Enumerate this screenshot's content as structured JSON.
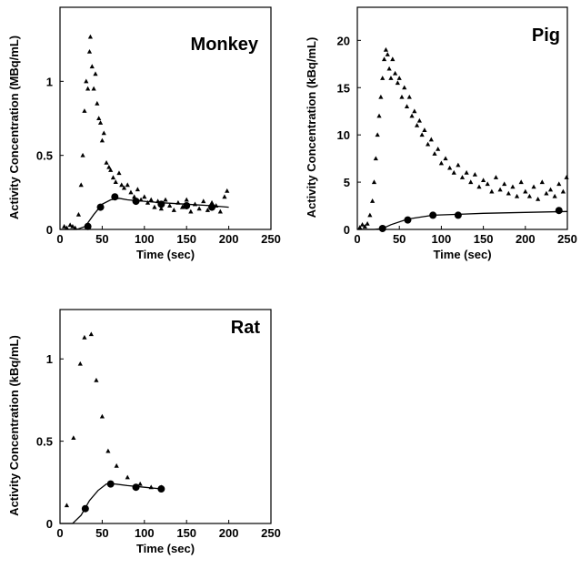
{
  "chart_data": [
    {
      "type": "scatter",
      "title": "Monkey",
      "x_label": "Time (sec)",
      "y_label": "Activity Concentration (MBq/mL)",
      "xlim": [
        0,
        250
      ],
      "xticks": [
        0,
        50,
        100,
        150,
        200,
        250
      ],
      "ylim": [
        0,
        1.5
      ],
      "yticks": [
        0,
        0.5,
        1
      ],
      "color": "#000000",
      "series": [
        {
          "marker": "triangle",
          "x": [
            5,
            8,
            12,
            15,
            18,
            22,
            25,
            27,
            29,
            31,
            33,
            35,
            36,
            38,
            40,
            42,
            44,
            46,
            48,
            50,
            52,
            55,
            58,
            60,
            63,
            66,
            70,
            73,
            76,
            80,
            84,
            88,
            92,
            96,
            100,
            104,
            108,
            112,
            116,
            120,
            125,
            130,
            135,
            140,
            145,
            150,
            155,
            160,
            165,
            170,
            175,
            180,
            185,
            190,
            195,
            198
          ],
          "values": [
            0.02,
            0.01,
            0.03,
            0.02,
            0.01,
            0.1,
            0.3,
            0.5,
            0.8,
            1.0,
            0.95,
            1.2,
            1.3,
            1.1,
            0.95,
            1.05,
            0.85,
            0.75,
            0.72,
            0.6,
            0.65,
            0.45,
            0.42,
            0.4,
            0.35,
            0.32,
            0.38,
            0.3,
            0.28,
            0.3,
            0.25,
            0.22,
            0.27,
            0.2,
            0.22,
            0.18,
            0.2,
            0.15,
            0.19,
            0.14,
            0.2,
            0.16,
            0.13,
            0.18,
            0.15,
            0.2,
            0.12,
            0.17,
            0.14,
            0.19,
            0.13,
            0.18,
            0.16,
            0.12,
            0.22,
            0.26
          ]
        },
        {
          "marker": "circle",
          "x": [
            33,
            48,
            65,
            90,
            120,
            150,
            180
          ],
          "values": [
            0.02,
            0.15,
            0.22,
            0.19,
            0.17,
            0.16,
            0.15
          ]
        },
        {
          "marker": "line",
          "x": [
            0,
            20,
            30,
            40,
            50,
            60,
            70,
            80,
            100,
            120,
            150,
            180,
            200
          ],
          "values": [
            0,
            0,
            0.02,
            0.1,
            0.17,
            0.2,
            0.21,
            0.2,
            0.19,
            0.18,
            0.17,
            0.16,
            0.15
          ]
        }
      ]
    },
    {
      "type": "scatter",
      "title": "Pig",
      "x_label": "Time (sec)",
      "y_label": "Activity Concentration (kBq/mL)",
      "xlim": [
        0,
        250
      ],
      "xticks": [
        0,
        50,
        100,
        150,
        200,
        250
      ],
      "ylim": [
        0,
        23.5
      ],
      "yticks": [
        0,
        5,
        10,
        15,
        20
      ],
      "color": "#000000",
      "series": [
        {
          "marker": "triangle",
          "x": [
            3,
            6,
            9,
            12,
            15,
            18,
            20,
            22,
            24,
            26,
            28,
            30,
            32,
            34,
            36,
            38,
            40,
            42,
            45,
            48,
            50,
            53,
            56,
            59,
            62,
            65,
            68,
            71,
            74,
            77,
            80,
            84,
            88,
            92,
            96,
            100,
            105,
            110,
            115,
            120,
            125,
            130,
            135,
            140,
            145,
            150,
            155,
            160,
            165,
            170,
            175,
            180,
            185,
            190,
            195,
            200,
            205,
            210,
            215,
            220,
            225,
            230,
            235,
            240,
            245,
            249
          ],
          "values": [
            0.2,
            0.5,
            0.3,
            0.6,
            1.5,
            3,
            5,
            7.5,
            10,
            12,
            14,
            16,
            18,
            19,
            18.5,
            17,
            16,
            18,
            16.5,
            15.5,
            16,
            14,
            15,
            13,
            14,
            12,
            12.5,
            11,
            11.5,
            10,
            10.5,
            9,
            9.5,
            8,
            8.5,
            7,
            7.5,
            6.5,
            6,
            6.8,
            5.5,
            6,
            5,
            5.8,
            4.5,
            5.2,
            4.8,
            4,
            5.5,
            4.2,
            4.8,
            3.8,
            4.5,
            3.5,
            5,
            4,
            3.5,
            4.5,
            3.2,
            5,
            3.8,
            4.2,
            3.5,
            4.8,
            4,
            5.5
          ]
        },
        {
          "marker": "circle",
          "x": [
            30,
            60,
            90,
            120,
            240
          ],
          "values": [
            0.1,
            1,
            1.5,
            1.5,
            2
          ]
        },
        {
          "marker": "line",
          "x": [
            0,
            20,
            30,
            40,
            60,
            90,
            120,
            150,
            200,
            250
          ],
          "values": [
            0,
            0,
            0.1,
            0.5,
            1.1,
            1.5,
            1.6,
            1.7,
            1.8,
            1.9
          ]
        }
      ]
    },
    {
      "type": "scatter",
      "title": "Rat",
      "x_label": "Time (sec)",
      "y_label": "Activity Concentration (kBq/mL)",
      "xlim": [
        0,
        250
      ],
      "xticks": [
        0,
        50,
        100,
        150,
        200,
        250
      ],
      "ylim": [
        0,
        1.3
      ],
      "yticks": [
        0,
        0.5,
        1
      ],
      "color": "#000000",
      "series": [
        {
          "marker": "triangle",
          "x": [
            8,
            16,
            24,
            29,
            37,
            43,
            50,
            57,
            67,
            80,
            95,
            108,
            120
          ],
          "values": [
            0.11,
            0.52,
            0.97,
            1.13,
            1.15,
            0.87,
            0.65,
            0.44,
            0.35,
            0.28,
            0.24,
            0.22,
            0.22
          ]
        },
        {
          "marker": "circle",
          "x": [
            30,
            60,
            90,
            120
          ],
          "values": [
            0.09,
            0.24,
            0.22,
            0.21
          ]
        },
        {
          "marker": "line",
          "x": [
            0,
            15,
            25,
            35,
            45,
            55,
            65,
            80,
            100,
            120
          ],
          "values": [
            0,
            0,
            0.05,
            0.14,
            0.2,
            0.24,
            0.24,
            0.23,
            0.22,
            0.21
          ]
        }
      ]
    }
  ]
}
